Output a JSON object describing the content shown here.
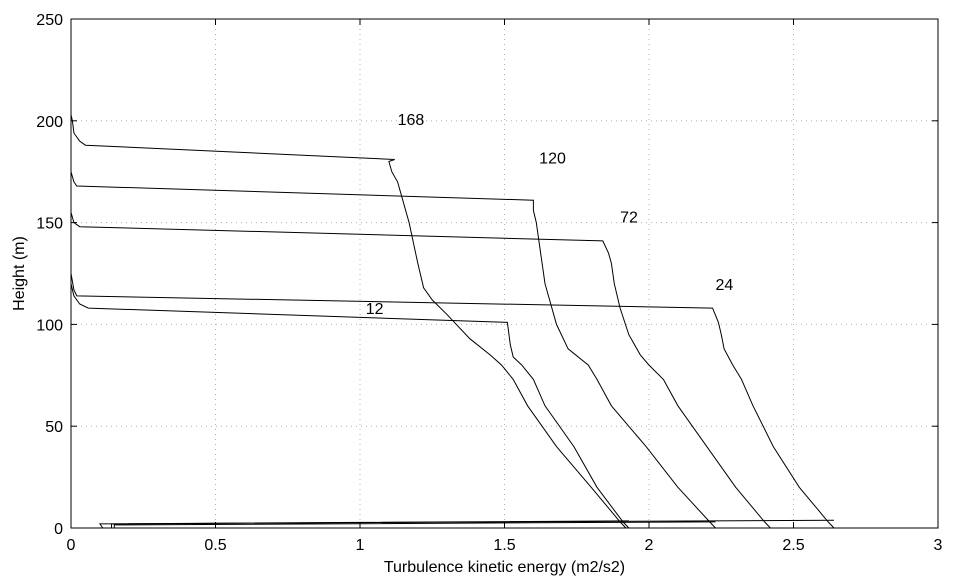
{
  "chart_data": {
    "type": "line",
    "title": "",
    "xlabel": "Turbulence kinetic energy (m2/s2)",
    "ylabel": "Height (m)",
    "xlim": [
      0,
      3
    ],
    "ylim": [
      0,
      250
    ],
    "xticks": [
      0,
      0.5,
      1,
      1.5,
      2,
      2.5,
      3
    ],
    "xtick_labels": [
      "0",
      "0.5",
      "1",
      "1.5",
      "2",
      "2.5",
      "3"
    ],
    "yticks": [
      0,
      50,
      100,
      150,
      200,
      250
    ],
    "ytick_labels": [
      "0",
      "50",
      "100",
      "150",
      "200",
      "250"
    ],
    "grid": true,
    "series": [
      {
        "name": "12",
        "label_at": [
          1.02,
          105
        ],
        "points": [
          [
            1.92,
            0
          ],
          [
            1.9,
            3
          ],
          [
            1.8,
            20
          ],
          [
            1.68,
            40
          ],
          [
            1.58,
            60
          ],
          [
            1.53,
            73
          ],
          [
            1.49,
            80
          ],
          [
            1.45,
            85
          ],
          [
            1.38,
            93
          ],
          [
            1.3,
            105
          ],
          [
            1.25,
            112
          ],
          [
            1.22,
            118
          ],
          [
            1.2,
            130
          ],
          [
            1.17,
            150
          ],
          [
            1.14,
            165
          ],
          [
            1.13,
            170
          ],
          [
            1.11,
            175
          ],
          [
            1.1,
            180
          ],
          [
            1.12,
            181
          ],
          [
            0.05,
            188
          ],
          [
            0.03,
            190
          ],
          [
            0.01,
            194
          ],
          [
            0.005,
            200
          ],
          [
            0,
            203
          ]
        ]
      },
      {
        "name": "24",
        "label_at": [
          2.23,
          117
        ],
        "points": [
          [
            2.64,
            0
          ],
          [
            2.62,
            3
          ],
          [
            2.52,
            20
          ],
          [
            2.43,
            40
          ],
          [
            2.36,
            60
          ],
          [
            2.32,
            73
          ],
          [
            2.29,
            80
          ],
          [
            2.26,
            88
          ],
          [
            2.25,
            95
          ],
          [
            2.24,
            101
          ],
          [
            2.22,
            108
          ],
          [
            0.02,
            114
          ],
          [
            0.01,
            117
          ],
          [
            0,
            125
          ],
          [
            0,
            130
          ]
        ]
      },
      {
        "name": "72",
        "label_at": [
          1.9,
          150
        ],
        "points": [
          [
            2.42,
            0
          ],
          [
            2.4,
            3
          ],
          [
            2.3,
            20
          ],
          [
            2.2,
            40
          ],
          [
            2.1,
            60
          ],
          [
            2.05,
            73
          ],
          [
            2,
            80
          ],
          [
            1.97,
            85
          ],
          [
            1.93,
            95
          ],
          [
            1.9,
            108
          ],
          [
            1.88,
            120
          ],
          [
            1.87,
            130
          ],
          [
            1.86,
            135
          ],
          [
            1.84,
            141
          ],
          [
            0.03,
            148
          ],
          [
            0.01,
            150
          ],
          [
            0,
            155
          ]
        ]
      },
      {
        "name": "120",
        "label_at": [
          1.62,
          179
        ],
        "points": [
          [
            2.23,
            0
          ],
          [
            2.21,
            3
          ],
          [
            2.1,
            20
          ],
          [
            1.99,
            40
          ],
          [
            1.87,
            60
          ],
          [
            1.82,
            73
          ],
          [
            1.79,
            80
          ],
          [
            1.72,
            88
          ],
          [
            1.68,
            100
          ],
          [
            1.64,
            120
          ],
          [
            1.62,
            140
          ],
          [
            1.61,
            150
          ],
          [
            1.6,
            156
          ],
          [
            1.6,
            161
          ],
          [
            0.02,
            168
          ],
          [
            0.01,
            170
          ],
          [
            0,
            175
          ]
        ]
      },
      {
        "name": "168",
        "label_at": [
          1.13,
          198
        ],
        "points": [
          [
            1.93,
            0
          ],
          [
            1.91,
            3
          ],
          [
            1.82,
            20
          ],
          [
            1.74,
            40
          ],
          [
            1.64,
            60
          ],
          [
            1.6,
            73
          ],
          [
            1.56,
            80
          ],
          [
            1.53,
            84
          ],
          [
            1.52,
            90
          ],
          [
            1.51,
            101
          ],
          [
            0.06,
            108
          ],
          [
            0.03,
            110
          ],
          [
            0.01,
            114
          ],
          [
            0,
            120
          ]
        ]
      }
    ],
    "surface_traces": [
      [
        [
          0.11,
          0
        ],
        [
          0.1,
          2
        ],
        [
          1.93,
          3.5
        ]
      ],
      [
        [
          0.14,
          0
        ],
        [
          0.14,
          2
        ],
        [
          2.64,
          3.8
        ]
      ],
      [
        [
          0.15,
          0
        ],
        [
          0.15,
          1.5
        ],
        [
          2.23,
          3
        ]
      ]
    ]
  }
}
